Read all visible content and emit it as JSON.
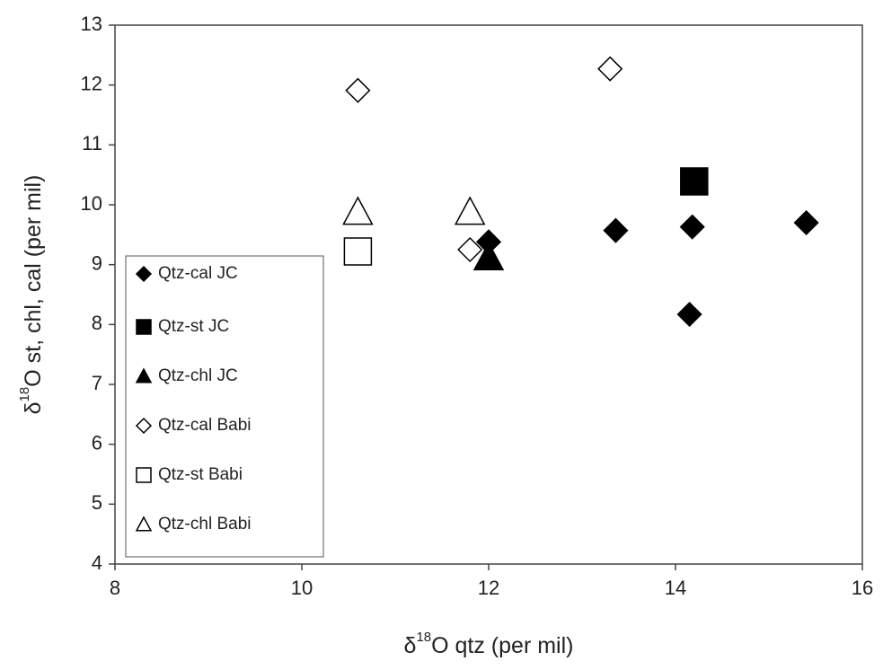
{
  "chart_data": {
    "type": "scatter",
    "xlabel": {
      "prefix": "δ",
      "sup": "18",
      "text": "O qtz (per mil)"
    },
    "ylabel": {
      "prefix": "δ",
      "sup": "18",
      "text": "O st, chl, cal (per mil)"
    },
    "xlim": [
      8,
      16
    ],
    "xticks": [
      8,
      10,
      12,
      14,
      16
    ],
    "ylim": [
      4,
      13
    ],
    "yticks": [
      4,
      5,
      6,
      7,
      8,
      9,
      10,
      11,
      12,
      13
    ],
    "legend": "lower left",
    "series": [
      {
        "name": "Qtz-cal JC",
        "marker": "diamond",
        "filled": true,
        "color": "#000000",
        "x": [
          12.0,
          13.36,
          14.18,
          15.4,
          14.15
        ],
        "values": [
          9.38,
          9.57,
          9.63,
          9.7,
          8.17
        ]
      },
      {
        "name": "Qtz-st JC",
        "marker": "square",
        "filled": true,
        "color": "#000000",
        "x": [
          14.2
        ],
        "values": [
          10.39
        ]
      },
      {
        "name": "Qtz-chl JC",
        "marker": "triangle",
        "filled": true,
        "color": "#000000",
        "x": [
          12.0
        ],
        "values": [
          9.12
        ]
      },
      {
        "name": "Qtz-cal Babi",
        "marker": "diamond",
        "filled": false,
        "color": "#000000",
        "x": [
          10.6,
          13.3,
          11.8
        ],
        "values": [
          11.91,
          12.27,
          9.25
        ]
      },
      {
        "name": "Qtz-st Babi",
        "marker": "square",
        "filled": false,
        "color": "#000000",
        "x": [
          10.6
        ],
        "values": [
          9.22
        ]
      },
      {
        "name": "Qtz-chl Babi",
        "marker": "triangle",
        "filled": false,
        "color": "#000000",
        "x": [
          10.6,
          11.8
        ],
        "values": [
          9.88,
          9.88
        ]
      }
    ]
  }
}
